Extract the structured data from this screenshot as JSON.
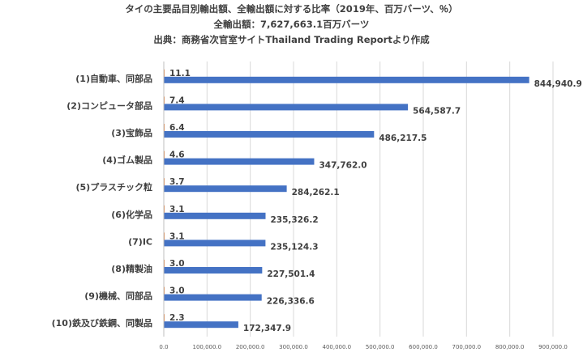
{
  "chart_data": {
    "type": "bar",
    "orientation": "horizontal",
    "title": "タイの主要品目別輸出額、全輸出額に対する比率（2019年、百万バーツ、％）",
    "subtitle": "全輸出額：7,627,663.1百万バーツ",
    "source": "出典：商務省次官室サイトThailand Trading Reportより作成",
    "categories": [
      "(1)自動車、同部品",
      "(2)コンピュータ部品",
      "(3)宝飾品",
      "(4)ゴム製品",
      "(5)プラスチック粒",
      "(6)化学品",
      "(7)IC",
      "(8)精製油",
      "(9)機械、同部品",
      "(10)鉄及び鉄鋼、同製品"
    ],
    "series": [
      {
        "values": [
          844940.9,
          564587.7,
          486217.5,
          347762.0,
          284262.1,
          235326.2,
          235124.3,
          227501.4,
          226336.6,
          172347.9
        ],
        "labels": [
          "844,940.9",
          "564,587.7",
          "486,217.5",
          "347,762.0",
          "284,262.1",
          "235,326.2",
          "235,124.3",
          "227,501.4",
          "226,336.6",
          "172,347.9"
        ],
        "color": "#4472C4"
      },
      {
        "values": [
          11.1,
          7.4,
          6.4,
          4.6,
          3.7,
          3.1,
          3.1,
          3.0,
          3.0,
          2.3
        ],
        "labels": [
          "11.1",
          "7.4",
          "6.4",
          "4.6",
          "3.7",
          "3.1",
          "3.1",
          "3.0",
          "3.0",
          "2.3"
        ],
        "color": "#ED7D31"
      }
    ],
    "xlim": [
      0,
      900000
    ],
    "xticks": [
      0,
      100000,
      200000,
      300000,
      400000,
      500000,
      600000,
      700000,
      800000,
      900000
    ],
    "xtick_labels": [
      "0.0",
      "100,000.0",
      "200,000.0",
      "300,000.0",
      "400,000.0",
      "500,000.0",
      "600,000.0",
      "700,000.0",
      "800,000.0",
      "900,000.0"
    ],
    "grid": true,
    "legend": "none"
  }
}
